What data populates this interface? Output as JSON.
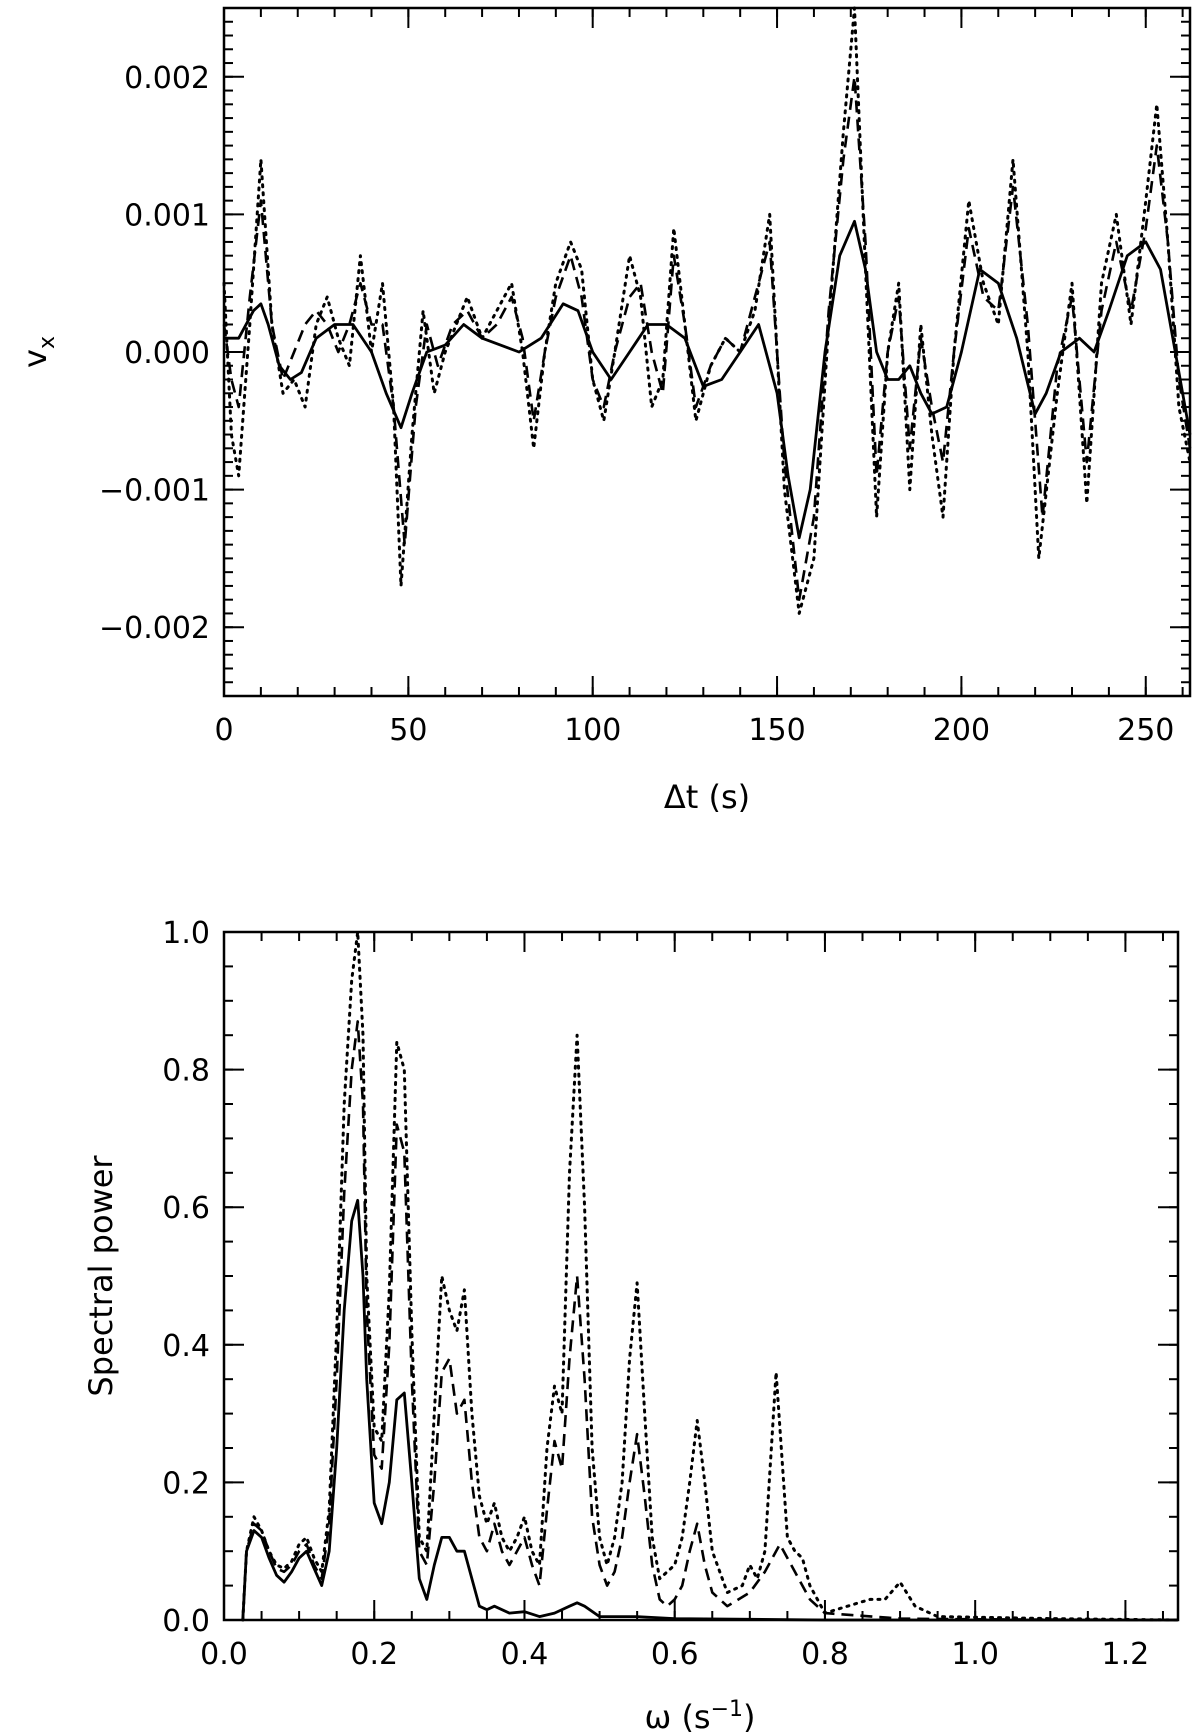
{
  "chart_data": [
    {
      "type": "line",
      "xlabel": "Δt (s)",
      "ylabel": "v",
      "ylabel_sub": "x",
      "xlim": [
        0,
        262
      ],
      "ylim": [
        -0.0025,
        0.0025
      ],
      "xticks": [
        0,
        50,
        100,
        150,
        200,
        250
      ],
      "xtick_labels": [
        "0",
        "50",
        "100",
        "150",
        "200",
        "250"
      ],
      "yticks": [
        -0.002,
        -0.001,
        0,
        0.001,
        0.002
      ],
      "ytick_labels": [
        "−0.002",
        "−0.001",
        "0.000",
        "0.001",
        "0.002"
      ],
      "grid": false,
      "series": [
        {
          "style": "solid",
          "x": [
            0,
            4,
            8,
            10,
            12,
            15,
            18,
            21,
            25,
            30,
            35,
            40,
            44,
            48,
            51,
            55,
            60,
            65,
            70,
            75,
            80,
            86,
            92,
            96,
            100,
            105,
            110,
            115,
            120,
            125,
            130,
            135,
            140,
            145,
            150,
            153,
            156,
            159,
            163,
            167,
            171,
            174,
            177,
            180,
            183,
            186,
            189,
            192,
            196,
            200,
            205,
            210,
            215,
            220,
            223,
            227,
            232,
            236,
            240,
            245,
            250,
            254,
            258,
            262
          ],
          "y": [
            0.0001,
            0.0001,
            0.0003,
            0.00035,
            0.0002,
            -0.0001,
            -0.0002,
            -0.00015,
            0.0001,
            0.0002,
            0.0002,
            0.0,
            -0.0003,
            -0.00055,
            -0.0003,
            0.0,
            5e-05,
            0.0002,
            0.0001,
            5e-05,
            0.0,
            0.0001,
            0.00035,
            0.0003,
            0.0,
            -0.0002,
            0.0,
            0.0002,
            0.0002,
            0.0001,
            -0.00025,
            -0.0002,
            0.0,
            0.0002,
            -0.0003,
            -0.0009,
            -0.00135,
            -0.001,
            0.0,
            0.0007,
            0.00095,
            0.0006,
            0.0,
            -0.0002,
            -0.0002,
            -0.0001,
            -0.0003,
            -0.00045,
            -0.0004,
            0.0,
            0.0006,
            0.0005,
            0.0001,
            -0.00045,
            -0.0003,
            0.0,
            0.0001,
            0.0,
            0.0003,
            0.0007,
            0.0008,
            0.0006,
            0.0,
            -0.0006
          ]
        },
        {
          "style": "dashed",
          "x": [
            0,
            2,
            4,
            7,
            10,
            13,
            16,
            19,
            22,
            25,
            28,
            31,
            34,
            37,
            40,
            43,
            46,
            49,
            52,
            55,
            58,
            62,
            66,
            70,
            74,
            78,
            81,
            84,
            87,
            90,
            94,
            97,
            100,
            103,
            106,
            110,
            113,
            116,
            119,
            122,
            125,
            128,
            132,
            136,
            140,
            144,
            148,
            152,
            156,
            160,
            164,
            168,
            171,
            174,
            177,
            180,
            183,
            186,
            189,
            192,
            195,
            198,
            202,
            206,
            210,
            214,
            218,
            222,
            226,
            230,
            234,
            238,
            242,
            246,
            250,
            253,
            256,
            259,
            262
          ],
          "y": [
            0.0002,
            -0.0002,
            -0.0004,
            0.0004,
            0.0011,
            0.0002,
            -0.0002,
            0.0,
            0.0002,
            0.0003,
            0.0002,
            0.0,
            0.0002,
            0.0005,
            0.0002,
            0.0002,
            -0.0004,
            -0.0014,
            -0.0004,
            0.0002,
            -0.0001,
            0.0002,
            0.0003,
            0.0001,
            0.0002,
            0.0004,
            0.0001,
            -0.0005,
            0.0,
            0.0004,
            0.0007,
            0.0004,
            -0.0002,
            -0.0004,
            0.0,
            0.0004,
            0.0005,
            0.0,
            -0.0003,
            0.0007,
            0.0002,
            -0.0004,
            -0.0001,
            0.0001,
            0.0,
            0.0004,
            0.0008,
            -0.0008,
            -0.0018,
            -0.0012,
            0.0003,
            0.0014,
            0.002,
            0.0008,
            -0.0009,
            0.0,
            0.0004,
            -0.0007,
            0.0001,
            -0.0004,
            -0.0008,
            0.0,
            0.0009,
            0.0004,
            0.0003,
            0.0012,
            0.0002,
            -0.0012,
            -0.0001,
            0.0004,
            -0.0008,
            0.0003,
            0.0008,
            0.0003,
            0.0009,
            0.0015,
            0.0008,
            -0.0002,
            -0.0007
          ]
        },
        {
          "style": "dotted",
          "x": [
            0,
            2,
            4,
            7,
            10,
            13,
            16,
            19,
            22,
            25,
            28,
            31,
            34,
            37,
            40,
            43,
            46,
            48,
            51,
            54,
            57,
            60,
            63,
            66,
            70,
            74,
            78,
            81,
            84,
            87,
            90,
            94,
            97,
            100,
            103,
            106,
            110,
            113,
            116,
            119,
            122,
            125,
            128,
            132,
            136,
            140,
            144,
            148,
            152,
            156,
            160,
            164,
            168,
            171,
            174,
            177,
            180,
            183,
            186,
            189,
            192,
            195,
            198,
            202,
            206,
            210,
            214,
            218,
            221,
            226,
            230,
            234,
            238,
            242,
            246,
            250,
            253,
            256,
            259,
            262
          ],
          "y": [
            0.0005,
            -0.0006,
            -0.0009,
            0.0002,
            0.0014,
            0.0002,
            -0.0003,
            -0.0002,
            -0.0004,
            0.0002,
            0.0004,
            0.0001,
            -0.0001,
            0.0007,
            0.0,
            0.0005,
            -0.0004,
            -0.0017,
            -0.0006,
            0.0003,
            -0.0003,
            0.0,
            0.0002,
            0.0004,
            0.0001,
            0.0003,
            0.0005,
            0.0,
            -0.0007,
            0.0,
            0.0005,
            0.0008,
            0.0006,
            -0.0002,
            -0.0005,
            0.0,
            0.0007,
            0.0004,
            -0.0004,
            -0.0002,
            0.0009,
            0.0002,
            -0.0005,
            -0.0001,
            0.0001,
            0.0,
            0.0003,
            0.001,
            -0.001,
            -0.0019,
            -0.0015,
            0.0002,
            0.0016,
            0.0026,
            0.0006,
            -0.0012,
            0.0,
            0.0005,
            -0.001,
            0.0002,
            -0.0006,
            -0.0012,
            0.0,
            0.0011,
            0.0005,
            0.0002,
            0.0014,
            0.0,
            -0.0015,
            -0.0003,
            0.0005,
            -0.0011,
            0.0005,
            0.001,
            0.0002,
            0.0011,
            0.0018,
            0.0008,
            -0.0004,
            -0.0008
          ]
        }
      ]
    },
    {
      "type": "line",
      "xlabel": "ω (s",
      "xlabel_sup": "−1",
      "xlabel_end": ")",
      "ylabel": "Spectral power",
      "xlim": [
        0,
        1.27
      ],
      "ylim": [
        0,
        1.0
      ],
      "xticks": [
        0.0,
        0.2,
        0.4,
        0.6,
        0.8,
        1.0,
        1.2
      ],
      "xtick_labels": [
        "0.0",
        "0.2",
        "0.4",
        "0.6",
        "0.8",
        "1.0",
        "1.2"
      ],
      "yticks": [
        0.0,
        0.2,
        0.4,
        0.6,
        0.8,
        1.0
      ],
      "ytick_labels": [
        "0.0",
        "0.2",
        "0.4",
        "0.6",
        "0.8",
        "1.0"
      ],
      "grid": false,
      "series": [
        {
          "style": "solid",
          "x": [
            0.025,
            0.03,
            0.04,
            0.05,
            0.06,
            0.07,
            0.08,
            0.09,
            0.1,
            0.11,
            0.12,
            0.13,
            0.14,
            0.15,
            0.16,
            0.17,
            0.178,
            0.185,
            0.19,
            0.2,
            0.21,
            0.22,
            0.23,
            0.24,
            0.25,
            0.26,
            0.27,
            0.28,
            0.29,
            0.3,
            0.31,
            0.32,
            0.33,
            0.34,
            0.35,
            0.36,
            0.38,
            0.4,
            0.42,
            0.44,
            0.46,
            0.47,
            0.48,
            0.5,
            0.55,
            0.6,
            0.7,
            0.8,
            1.0,
            1.27
          ],
          "y": [
            0.0,
            0.1,
            0.13,
            0.12,
            0.09,
            0.065,
            0.055,
            0.07,
            0.09,
            0.1,
            0.075,
            0.05,
            0.1,
            0.25,
            0.45,
            0.58,
            0.61,
            0.5,
            0.35,
            0.17,
            0.14,
            0.2,
            0.32,
            0.33,
            0.2,
            0.06,
            0.03,
            0.08,
            0.12,
            0.12,
            0.1,
            0.1,
            0.06,
            0.02,
            0.015,
            0.02,
            0.01,
            0.012,
            0.005,
            0.01,
            0.02,
            0.025,
            0.02,
            0.005,
            0.005,
            0.002,
            0.001,
            0.0,
            0.0,
            0.0
          ]
        },
        {
          "style": "dashed",
          "x": [
            0.025,
            0.03,
            0.04,
            0.05,
            0.06,
            0.07,
            0.08,
            0.09,
            0.1,
            0.11,
            0.12,
            0.13,
            0.14,
            0.15,
            0.16,
            0.17,
            0.178,
            0.185,
            0.19,
            0.2,
            0.21,
            0.22,
            0.23,
            0.24,
            0.25,
            0.26,
            0.27,
            0.28,
            0.29,
            0.3,
            0.31,
            0.32,
            0.33,
            0.34,
            0.35,
            0.36,
            0.37,
            0.38,
            0.39,
            0.4,
            0.41,
            0.42,
            0.43,
            0.44,
            0.45,
            0.46,
            0.47,
            0.48,
            0.49,
            0.5,
            0.51,
            0.52,
            0.53,
            0.54,
            0.55,
            0.56,
            0.57,
            0.58,
            0.59,
            0.6,
            0.61,
            0.62,
            0.63,
            0.64,
            0.65,
            0.67,
            0.7,
            0.72,
            0.74,
            0.76,
            0.78,
            0.8,
            0.9,
            1.0,
            1.27
          ],
          "y": [
            0.0,
            0.1,
            0.14,
            0.13,
            0.1,
            0.075,
            0.07,
            0.08,
            0.1,
            0.11,
            0.08,
            0.06,
            0.14,
            0.35,
            0.62,
            0.8,
            0.87,
            0.75,
            0.45,
            0.24,
            0.22,
            0.4,
            0.72,
            0.68,
            0.35,
            0.1,
            0.08,
            0.2,
            0.36,
            0.38,
            0.3,
            0.32,
            0.2,
            0.12,
            0.1,
            0.14,
            0.1,
            0.08,
            0.1,
            0.12,
            0.08,
            0.05,
            0.16,
            0.26,
            0.22,
            0.38,
            0.5,
            0.35,
            0.15,
            0.08,
            0.05,
            0.07,
            0.12,
            0.2,
            0.27,
            0.18,
            0.08,
            0.03,
            0.02,
            0.03,
            0.05,
            0.1,
            0.14,
            0.08,
            0.04,
            0.02,
            0.04,
            0.07,
            0.11,
            0.07,
            0.03,
            0.01,
            0.002,
            0.001,
            0.0
          ]
        },
        {
          "style": "dotted",
          "x": [
            0.025,
            0.03,
            0.04,
            0.05,
            0.06,
            0.07,
            0.08,
            0.09,
            0.1,
            0.11,
            0.12,
            0.13,
            0.14,
            0.15,
            0.16,
            0.17,
            0.178,
            0.185,
            0.19,
            0.2,
            0.21,
            0.22,
            0.23,
            0.24,
            0.25,
            0.26,
            0.27,
            0.28,
            0.29,
            0.3,
            0.31,
            0.32,
            0.33,
            0.34,
            0.35,
            0.36,
            0.37,
            0.38,
            0.39,
            0.4,
            0.41,
            0.42,
            0.43,
            0.44,
            0.45,
            0.46,
            0.47,
            0.48,
            0.49,
            0.5,
            0.51,
            0.52,
            0.53,
            0.54,
            0.55,
            0.56,
            0.57,
            0.58,
            0.59,
            0.6,
            0.61,
            0.62,
            0.63,
            0.64,
            0.65,
            0.67,
            0.69,
            0.7,
            0.71,
            0.72,
            0.735,
            0.75,
            0.76,
            0.77,
            0.78,
            0.8,
            0.83,
            0.86,
            0.88,
            0.9,
            0.92,
            0.95,
            1.0,
            1.1,
            1.27
          ],
          "y": [
            0.0,
            0.1,
            0.15,
            0.13,
            0.1,
            0.08,
            0.075,
            0.085,
            0.11,
            0.12,
            0.09,
            0.07,
            0.16,
            0.42,
            0.75,
            0.93,
            1.0,
            0.85,
            0.5,
            0.28,
            0.26,
            0.48,
            0.84,
            0.8,
            0.42,
            0.12,
            0.1,
            0.3,
            0.5,
            0.45,
            0.42,
            0.48,
            0.3,
            0.18,
            0.14,
            0.17,
            0.12,
            0.1,
            0.12,
            0.15,
            0.1,
            0.08,
            0.25,
            0.34,
            0.3,
            0.65,
            0.85,
            0.6,
            0.25,
            0.12,
            0.08,
            0.12,
            0.2,
            0.38,
            0.49,
            0.3,
            0.12,
            0.06,
            0.07,
            0.08,
            0.12,
            0.2,
            0.29,
            0.2,
            0.1,
            0.04,
            0.05,
            0.08,
            0.06,
            0.1,
            0.36,
            0.12,
            0.1,
            0.09,
            0.05,
            0.01,
            0.02,
            0.03,
            0.03,
            0.055,
            0.02,
            0.005,
            0.004,
            0.002,
            0.0
          ]
        }
      ]
    }
  ]
}
